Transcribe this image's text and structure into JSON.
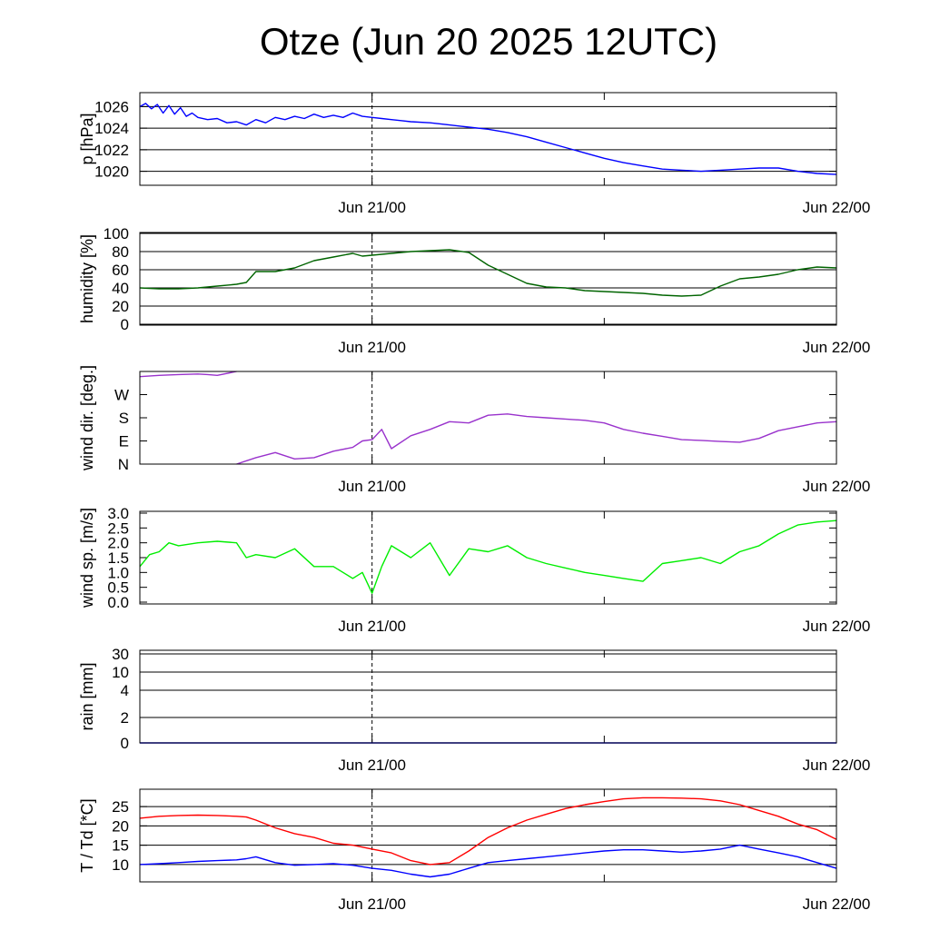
{
  "title": "Otze (Jun 20 2025 12UTC)",
  "x_tick_labels": [
    "Jun 21/00",
    "Jun 22/00"
  ],
  "chart_data": [
    {
      "type": "line",
      "id": "pressure",
      "ylabel": "p [hPa]",
      "ylim": [
        1018.7,
        1027.3
      ],
      "yticks": [
        1020,
        1022,
        1024,
        1026
      ],
      "ytick_labels": [
        "1020",
        "1022",
        "1024",
        "1026"
      ],
      "grid": true,
      "xlim": [
        0,
        36
      ],
      "x_unit": "hours from Jun 20 12UTC",
      "series": [
        {
          "color": "#0000ff",
          "x": [
            0,
            0.3,
            0.6,
            0.9,
            1.2,
            1.5,
            1.8,
            2.1,
            2.4,
            2.7,
            3,
            3.5,
            4,
            4.5,
            5,
            5.5,
            6,
            6.5,
            7,
            7.5,
            8,
            8.5,
            9,
            9.5,
            10,
            10.5,
            11,
            11.5,
            12,
            12.5,
            13,
            13.5,
            14,
            15,
            16,
            17,
            18,
            19,
            20,
            21,
            22,
            23,
            24,
            25,
            26,
            27,
            28,
            29,
            30,
            31,
            32,
            33,
            34,
            35,
            36
          ],
          "values": [
            1026.0,
            1026.3,
            1025.8,
            1026.2,
            1025.4,
            1026.1,
            1025.3,
            1025.9,
            1025.1,
            1025.4,
            1025.0,
            1024.8,
            1024.9,
            1024.5,
            1024.6,
            1024.3,
            1024.8,
            1024.5,
            1025.0,
            1024.8,
            1025.1,
            1024.9,
            1025.3,
            1025.0,
            1025.2,
            1025.0,
            1025.4,
            1025.1,
            1025.0,
            1024.9,
            1024.8,
            1024.7,
            1024.6,
            1024.5,
            1024.3,
            1024.1,
            1023.9,
            1023.6,
            1023.2,
            1022.7,
            1022.2,
            1021.7,
            1021.2,
            1020.8,
            1020.5,
            1020.2,
            1020.1,
            1020.0,
            1020.1,
            1020.2,
            1020.3,
            1020.3,
            1020.0,
            1019.8,
            1019.7
          ]
        }
      ]
    },
    {
      "type": "line",
      "id": "humidity",
      "ylabel": "humidity [%]",
      "ylim": [
        0,
        100
      ],
      "yticks": [
        0,
        20,
        40,
        60,
        80,
        100
      ],
      "ytick_labels": [
        "0",
        "20",
        "40",
        "60",
        "80",
        "100"
      ],
      "grid": true,
      "xlim": [
        0,
        36
      ],
      "series": [
        {
          "color": "#006400",
          "x": [
            0,
            1,
            2,
            3,
            4,
            5,
            5.5,
            6,
            7,
            8,
            9,
            10,
            11,
            11.5,
            12,
            13,
            14,
            15,
            16,
            17,
            18,
            19,
            20,
            21,
            22,
            23,
            24,
            25,
            26,
            27,
            28,
            29,
            30,
            31,
            32,
            33,
            34,
            35,
            36
          ],
          "values": [
            40,
            39,
            39,
            40,
            42,
            44,
            46,
            58,
            58,
            62,
            70,
            74,
            78,
            75,
            76,
            78,
            80,
            81,
            82,
            79,
            65,
            55,
            45,
            41,
            40,
            37,
            36,
            35,
            34,
            32,
            31,
            32,
            42,
            50,
            52,
            55,
            60,
            63,
            62
          ]
        }
      ]
    },
    {
      "type": "line",
      "id": "wind_direction",
      "ylabel": "wind dir. [deg.]",
      "ylim": [
        0,
        360
      ],
      "yticks": [
        0,
        90,
        180,
        270
      ],
      "ytick_labels": [
        "N",
        "E",
        "S",
        "W"
      ],
      "grid": false,
      "xlim": [
        0,
        36
      ],
      "series": [
        {
          "color": "#9932cc",
          "segments": [
            {
              "x": [
                0,
                1,
                2,
                3,
                3.5,
                4,
                5
              ],
              "values": [
                340,
                345,
                348,
                350,
                348,
                345,
                360
              ]
            },
            {
              "x": [
                5,
                6,
                7,
                8,
                9,
                10,
                11,
                11.5,
                12,
                12.5,
                13,
                14,
                15,
                16,
                17,
                18,
                19,
                20,
                21,
                22,
                23,
                24,
                25,
                26,
                27,
                28,
                29,
                30,
                31,
                32,
                33,
                34,
                35,
                36
              ],
              "values": [
                0,
                25,
                45,
                20,
                25,
                50,
                65,
                90,
                95,
                135,
                60,
                110,
                135,
                165,
                160,
                190,
                195,
                185,
                180,
                175,
                170,
                160,
                135,
                120,
                108,
                95,
                92,
                88,
                85,
                100,
                130,
                145,
                160,
                165
              ]
            }
          ]
        }
      ]
    },
    {
      "type": "line",
      "id": "wind_speed",
      "ylabel": "wind sp. [m/s]",
      "ylim": [
        0,
        3
      ],
      "yticks": [
        0,
        0.5,
        1,
        1.5,
        2,
        2.5,
        3
      ],
      "ytick_labels": [
        "0.0",
        "0.5",
        "1.0",
        "1.5",
        "2.0",
        "2.5",
        "3.0"
      ],
      "grid": false,
      "xlim": [
        0,
        36
      ],
      "series": [
        {
          "color": "#00ee00",
          "x": [
            0,
            0.5,
            1,
            1.5,
            2,
            3,
            4,
            5,
            5.5,
            6,
            7,
            8,
            9,
            10,
            11,
            11.5,
            12,
            12.5,
            13,
            14,
            15,
            16,
            17,
            18,
            19,
            20,
            21,
            22,
            23,
            24,
            25,
            26,
            27,
            28,
            29,
            30,
            31,
            32,
            33,
            34,
            35,
            36
          ],
          "values": [
            1.2,
            1.6,
            1.7,
            2.0,
            1.9,
            2.0,
            2.05,
            2.0,
            1.5,
            1.6,
            1.5,
            1.8,
            1.2,
            1.2,
            0.8,
            1.0,
            0.3,
            1.2,
            1.9,
            1.5,
            2.0,
            0.9,
            1.8,
            1.7,
            1.9,
            1.5,
            1.3,
            1.15,
            1.0,
            0.9,
            0.8,
            0.7,
            1.3,
            1.4,
            1.5,
            1.3,
            1.7,
            1.9,
            2.3,
            2.6,
            2.7,
            2.75
          ]
        }
      ]
    },
    {
      "type": "line",
      "id": "rain",
      "ylabel": "rain [mm]",
      "yticks": [
        0,
        2,
        4,
        10,
        30
      ],
      "ytick_labels": [
        "0",
        "2",
        "4",
        "10",
        "30"
      ],
      "grid": true,
      "xlim": [
        0,
        36
      ],
      "series": [
        {
          "color": "#0000ff",
          "x": [
            0,
            36
          ],
          "values": [
            0,
            0
          ]
        }
      ]
    },
    {
      "type": "line",
      "id": "temperature",
      "ylabel": "T / Td [*C]",
      "ylim": [
        5.5,
        29.5
      ],
      "yticks": [
        10,
        15,
        20,
        25
      ],
      "ytick_labels": [
        "10",
        "15",
        "20",
        "25"
      ],
      "grid": true,
      "xlim": [
        0,
        36
      ],
      "series": [
        {
          "color": "#ff0000",
          "x": [
            0,
            1,
            2,
            3,
            4,
            5,
            5.5,
            6,
            7,
            8,
            9,
            10,
            11,
            12,
            13,
            14,
            15,
            16,
            17,
            18,
            19,
            20,
            21,
            22,
            23,
            24,
            25,
            26,
            27,
            28,
            29,
            30,
            31,
            32,
            33,
            34,
            35,
            36
          ],
          "values": [
            22,
            22.5,
            22.7,
            22.8,
            22.7,
            22.5,
            22.3,
            21.5,
            19.5,
            18,
            17,
            15.5,
            15,
            14,
            13,
            11,
            10,
            10.5,
            13.5,
            17,
            19.5,
            21.5,
            23,
            24.5,
            25.5,
            26.3,
            27,
            27.3,
            27.3,
            27.2,
            27,
            26.5,
            25.5,
            24,
            22.5,
            20.5,
            19,
            16.5
          ]
        },
        {
          "color": "#0000ff",
          "x": [
            0,
            1,
            2,
            3,
            4,
            5,
            5.5,
            6,
            7,
            8,
            9,
            10,
            11,
            12,
            13,
            14,
            15,
            16,
            17,
            18,
            19,
            20,
            21,
            22,
            23,
            24,
            25,
            26,
            27,
            28,
            29,
            30,
            31,
            32,
            33,
            34,
            35,
            36
          ],
          "values": [
            10,
            10.2,
            10.5,
            10.8,
            11,
            11.2,
            11.5,
            12,
            10.5,
            9.8,
            10,
            10.2,
            9.8,
            9,
            8.5,
            7.5,
            6.8,
            7.5,
            9,
            10.5,
            11,
            11.5,
            12,
            12.5,
            13,
            13.5,
            13.8,
            13.8,
            13.5,
            13.2,
            13.5,
            14,
            15,
            14,
            13,
            12,
            10.5,
            9
          ]
        }
      ]
    }
  ]
}
